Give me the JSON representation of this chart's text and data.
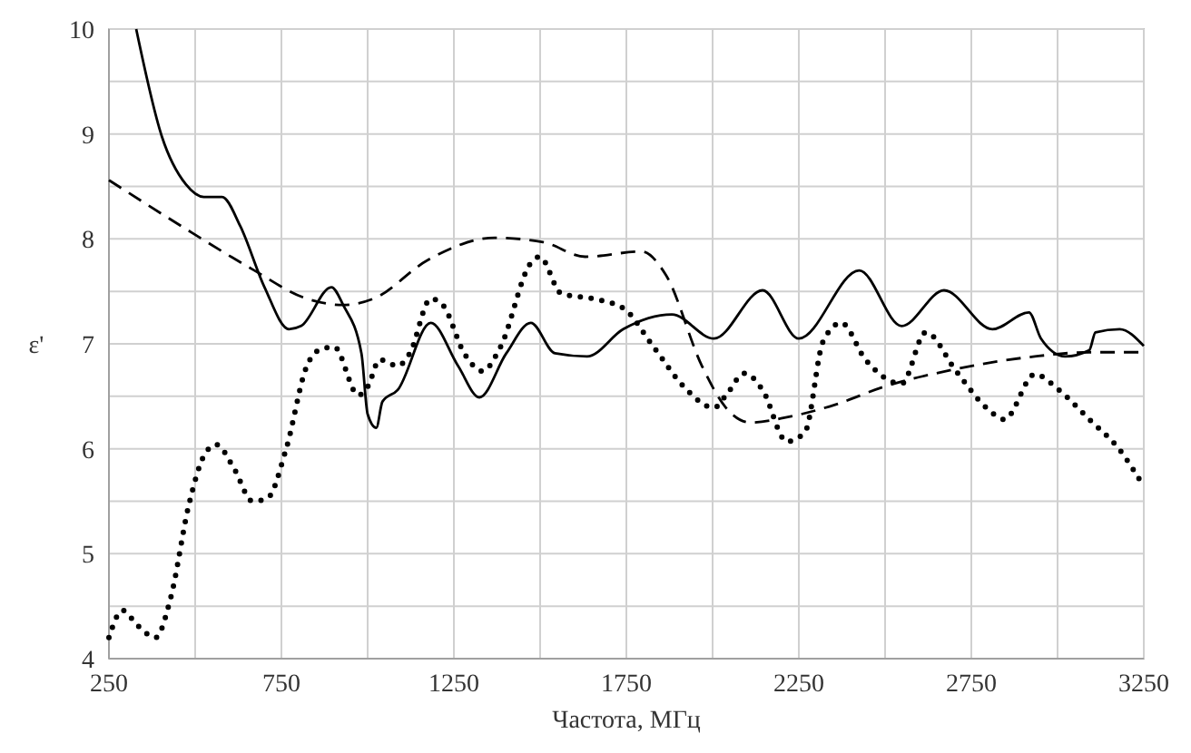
{
  "chart_data": {
    "type": "line",
    "xlabel": "Частота, МГц",
    "ylabel": "ε'",
    "grid": true,
    "marker": "none",
    "xlim": [
      250,
      3250
    ],
    "ylim": [
      4,
      10
    ],
    "xticks": [
      250,
      {
        "value": 500,
        "label": null
      },
      750,
      {
        "value": 1000,
        "label": null
      },
      1250,
      {
        "value": 1500,
        "label": null
      },
      1750,
      {
        "value": 2000,
        "label": null
      },
      2250,
      {
        "value": 2500,
        "label": null
      },
      2750,
      {
        "value": 3000,
        "label": null
      },
      3250
    ],
    "yticks": [
      4,
      {
        "value": 4.5,
        "label": null
      },
      5,
      {
        "value": 5.5,
        "label": null
      },
      6,
      {
        "value": 6.5,
        "label": null
      },
      7,
      {
        "value": 7.5,
        "label": null
      },
      8,
      {
        "value": 8.5,
        "label": null
      },
      9,
      {
        "value": 9.5,
        "label": null
      },
      10
    ],
    "series": [
      {
        "color": "#000000",
        "line_style": "solid",
        "x": [
          329,
          403,
          473,
          525,
          578,
          631,
          701,
          772,
          807,
          895,
          929,
          982,
          1000,
          1025,
          1043,
          1087,
          1183,
          1262,
          1324,
          1402,
          1473,
          1543,
          1636,
          1741,
          1882,
          2004,
          2145,
          2250,
          2425,
          2548,
          2671,
          2811,
          2917,
          2952,
          3022,
          3092,
          3110,
          3180,
          3250
        ],
        "values": [
          10,
          8.98,
          8.52,
          8.4,
          8.4,
          8.12,
          7.54,
          7.14,
          7.17,
          7.54,
          7.37,
          6.91,
          6.33,
          6.2,
          6.45,
          6.56,
          7.2,
          6.79,
          6.49,
          6.91,
          7.2,
          6.91,
          6.88,
          7.14,
          7.28,
          7.05,
          7.51,
          7.05,
          7.7,
          7.17,
          7.51,
          7.14,
          7.3,
          7.05,
          6.88,
          6.94,
          7.11,
          7.14,
          6.98
        ]
      },
      {
        "color": "#000000",
        "line_style": "dashed",
        "x": [
          250,
          490,
          666,
          824,
          929,
          1017,
          1175,
          1368,
          1508,
          1631,
          1794,
          1864,
          1969,
          2039,
          2110,
          2215,
          2355,
          2496,
          2706,
          2934,
          3092,
          3250
        ],
        "values": [
          8.56,
          8.06,
          7.71,
          7.43,
          7.37,
          7.43,
          7.8,
          8.01,
          7.97,
          7.83,
          7.88,
          7.66,
          6.79,
          6.39,
          6.25,
          6.3,
          6.42,
          6.59,
          6.76,
          6.88,
          6.92,
          6.92
        ]
      },
      {
        "color": "#000000",
        "line_style": "dotted",
        "x": [
          250,
          289,
          332,
          385,
          429,
          482,
          525,
          561,
          613,
          666,
          710,
          763,
          824,
          859,
          903,
          973,
          1000,
          1035,
          1087,
          1122,
          1183,
          1218,
          1280,
          1333,
          1385,
          1473,
          1499,
          1561,
          1653,
          1741,
          1829,
          1917,
          2004,
          2039,
          2092,
          2145,
          2215,
          2268,
          2320,
          2373,
          2443,
          2548,
          2618,
          2706,
          2794,
          2846,
          2934,
          3004,
          3092,
          3180,
          3250
        ],
        "values": [
          4.2,
          4.46,
          4.32,
          4.2,
          4.58,
          5.47,
          5.93,
          6.04,
          5.81,
          5.5,
          5.53,
          5.99,
          6.79,
          6.94,
          6.97,
          6.51,
          6.59,
          6.85,
          6.79,
          6.91,
          7.43,
          7.37,
          6.91,
          6.74,
          6.97,
          7.77,
          7.83,
          7.48,
          7.43,
          7.34,
          6.97,
          6.59,
          6.39,
          6.51,
          6.72,
          6.56,
          6.07,
          6.16,
          7.02,
          7.2,
          6.85,
          6.62,
          7.11,
          6.74,
          6.39,
          6.28,
          6.71,
          6.56,
          6.28,
          5.99,
          5.64
        ]
      }
    ]
  }
}
